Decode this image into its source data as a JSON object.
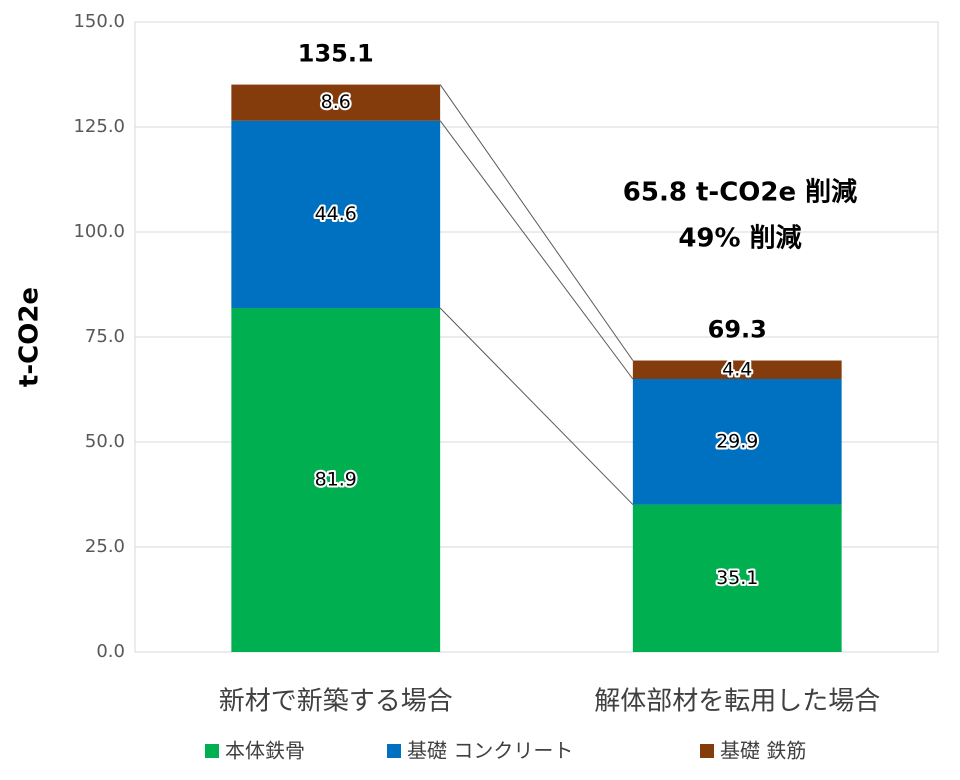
{
  "chart_data": {
    "type": "stacked_bar",
    "y_label": "t-CO2e",
    "categories": [
      "新材で新築する場合",
      "解体部材を転用した場合"
    ],
    "series": [
      {
        "name": "本体鉄骨",
        "color": "#00b050",
        "values": [
          81.9,
          35.1
        ]
      },
      {
        "name": "基礎 コンクリート",
        "color": "#0070c0",
        "values": [
          44.6,
          29.9
        ]
      },
      {
        "name": "基礎 鉄筋",
        "color": "#843c0c",
        "values": [
          8.6,
          4.4
        ]
      }
    ],
    "totals": [
      135.1,
      69.3
    ],
    "annotation": [
      "65.8 t-CO2e 削減",
      "49% 削減"
    ],
    "ylim": [
      0,
      150
    ],
    "yticks": [
      {
        "value": 0,
        "label": "0.0"
      },
      {
        "value": 25,
        "label": "25.0"
      },
      {
        "value": 50,
        "label": "50.0"
      },
      {
        "value": 75,
        "label": "75.0"
      },
      {
        "value": 100,
        "label": "100.0"
      },
      {
        "value": 125,
        "label": "125.0"
      },
      {
        "value": 150,
        "label": "150.0"
      }
    ],
    "grid": true,
    "legend": "bottom"
  }
}
